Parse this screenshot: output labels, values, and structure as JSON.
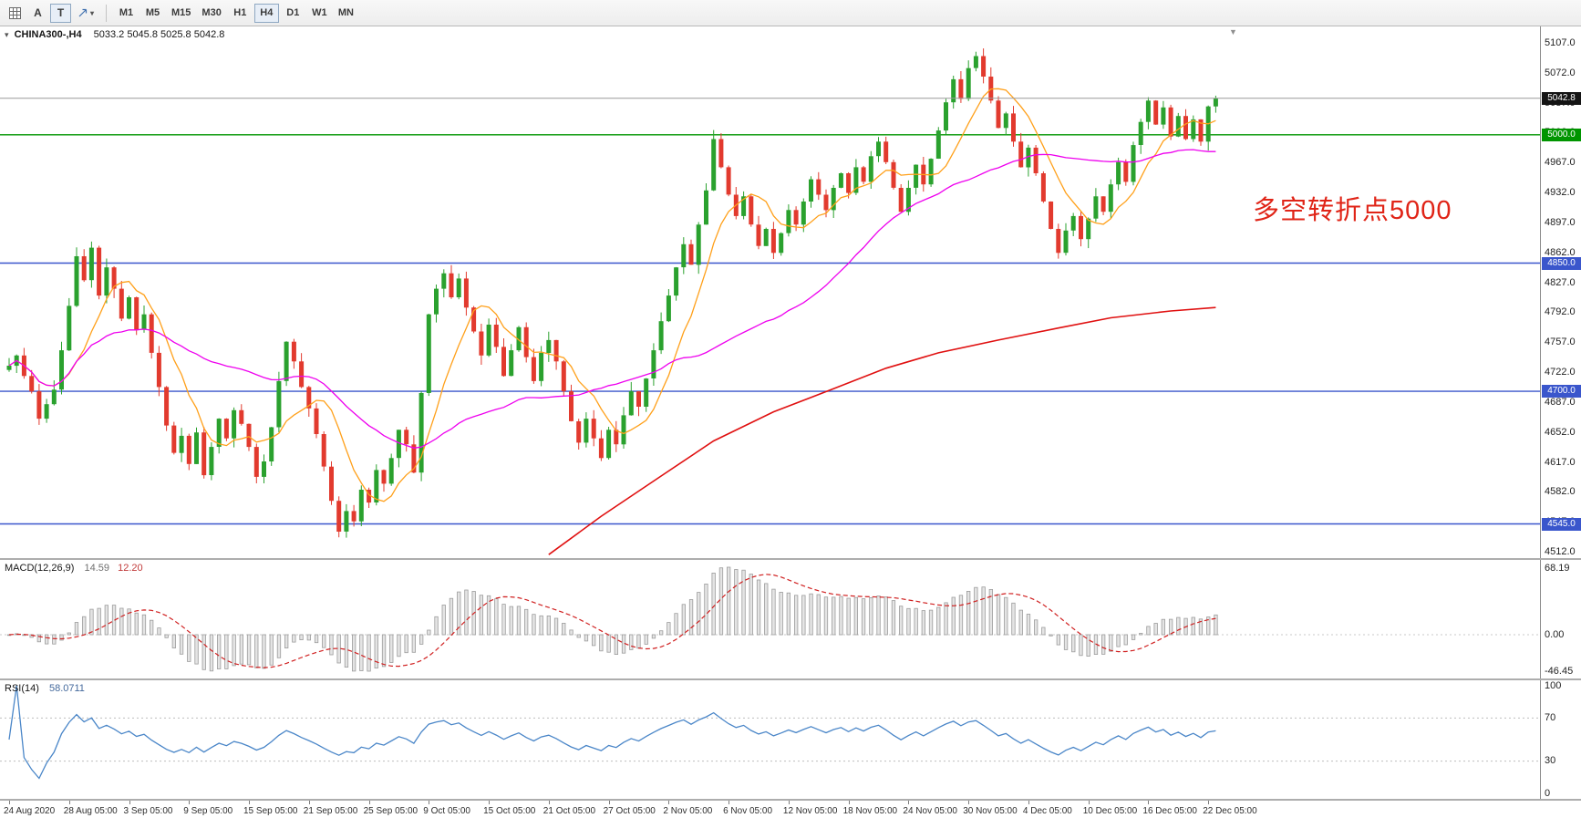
{
  "toolbar": {
    "tools": {
      "a_label": "A",
      "t_label": "T"
    },
    "timeframes": [
      "M1",
      "M5",
      "M15",
      "M30",
      "H1",
      "H4",
      "D1",
      "W1",
      "MN"
    ],
    "active_timeframe": "H4"
  },
  "header": {
    "symbol_period": "CHINA300-,H4",
    "ohlc": "5033.2 5045.8 5025.8 5042.8"
  },
  "chart_data": {
    "type": "candlestick",
    "symbol": "CHINA300-",
    "timeframe": "H4",
    "current_bar": {
      "open": 5033.2,
      "high": 5045.8,
      "low": 5025.8,
      "close": 5042.8
    },
    "first_open": 4725,
    "closes": [
      4730,
      4742,
      4718,
      4700,
      4668,
      4685,
      4702,
      4748,
      4800,
      4858,
      4830,
      4868,
      4812,
      4845,
      4820,
      4785,
      4810,
      4772,
      4790,
      4745,
      4705,
      4660,
      4628,
      4648,
      4615,
      4652,
      4602,
      4635,
      4668,
      4645,
      4678,
      4662,
      4635,
      4600,
      4618,
      4658,
      4712,
      4758,
      4735,
      4705,
      4680,
      4650,
      4612,
      4572,
      4536,
      4560,
      4548,
      4585,
      4570,
      4608,
      4592,
      4622,
      4655,
      4638,
      4605,
      4698,
      4790,
      4820,
      4838,
      4810,
      4832,
      4798,
      4770,
      4742,
      4778,
      4752,
      4718,
      4748,
      4775,
      4740,
      4712,
      4745,
      4760,
      4735,
      4700,
      4665,
      4640,
      4668,
      4645,
      4622,
      4655,
      4638,
      4672,
      4700,
      4682,
      4715,
      4748,
      4782,
      4812,
      4845,
      4872,
      4848,
      4895,
      4935,
      4995,
      4962,
      4930,
      4905,
      4928,
      4895,
      4870,
      4890,
      4862,
      4885,
      4912,
      4895,
      4922,
      4948,
      4930,
      4912,
      4938,
      4955,
      4932,
      4962,
      4945,
      4975,
      4992,
      4968,
      4938,
      4910,
      4938,
      4965,
      4942,
      4972,
      5005,
      5038,
      5065,
      5042,
      5078,
      5092,
      5068,
      5040,
      5008,
      5025,
      4992,
      4962,
      4985,
      4955,
      4922,
      4890,
      4862,
      4888,
      4905,
      4878,
      4902,
      4928,
      4910,
      4942,
      4968,
      4945,
      4988,
      5015,
      5040,
      5012,
      5032,
      4998,
      5022,
      4995,
      5018,
      4992,
      5033.2,
      5042.8
    ],
    "up_color": "#2aa12e",
    "down_color": "#e23a2e",
    "price_axis": {
      "top_price": 5126.7,
      "bottom_price": 4505.0,
      "ticks": [
        "5107.0",
        "5072.0",
        "5037.0",
        "5002.0",
        "4967.0",
        "4932.0",
        "4897.0",
        "4862.0",
        "4827.0",
        "4792.0",
        "4757.0",
        "4722.0",
        "4687.0",
        "4652.0",
        "4617.0",
        "4582.0",
        "4547.0",
        "4512.0"
      ]
    },
    "hlines": [
      {
        "name": "current-price",
        "price": 5042.8,
        "color": "#9a9a9a",
        "label": "5042.8",
        "label_bg": "#141414"
      },
      {
        "name": "level-5000",
        "price": 5000,
        "color": "#009500",
        "label": "5000.0",
        "label_bg": "#009500"
      },
      {
        "name": "level-4850",
        "price": 4850,
        "color": "#3a56cc",
        "label": "4850.0",
        "label_bg": "#3a56cc"
      },
      {
        "name": "level-4700",
        "price": 4700,
        "color": "#3a56cc",
        "label": "4700.0",
        "label_bg": "#3a56cc"
      },
      {
        "name": "level-4545",
        "price": 4545,
        "color": "#3a56cc",
        "label": "4545.0",
        "label_bg": "#3a56cc"
      }
    ],
    "annotation": {
      "text": "多空转折点5000",
      "color": "#e02417"
    },
    "ma": {
      "fast": {
        "period": 8,
        "color": "#ffa01a"
      },
      "medium": {
        "period": 34,
        "color": "#ee00ee"
      },
      "slow_color": "#e01010",
      "slow_anchors": [
        [
          72,
          4509
        ],
        [
          79,
          4554
        ],
        [
          87,
          4601
        ],
        [
          94,
          4642
        ],
        [
          102,
          4676
        ],
        [
          110,
          4703
        ],
        [
          117,
          4727
        ],
        [
          124,
          4745
        ],
        [
          132,
          4760
        ],
        [
          140,
          4774
        ],
        [
          147,
          4786
        ],
        [
          155,
          4794
        ],
        [
          161,
          4798
        ]
      ]
    },
    "macd": {
      "label": "MACD(12,26,9)",
      "value_main": "14.59",
      "value_signal": "12.20",
      "fast": 12,
      "slow": 26,
      "signal": 9,
      "hist_fill": "#e4e4e4",
      "hist_stroke": "#9c9c9c",
      "signal_color": "#d02020",
      "axis_labels": [
        "68.19",
        "0.00",
        "-46.45"
      ]
    },
    "rsi": {
      "label": "RSI(14)",
      "value": "58.0711",
      "period": 14,
      "color": "#4a86c8",
      "levels": [
        70,
        30
      ],
      "axis_labels": [
        "100",
        "70",
        "30",
        "0"
      ]
    },
    "time_labels": [
      {
        "i": 0,
        "label": "24 Aug 2020"
      },
      {
        "i": 8,
        "label": "28 Aug 05:00"
      },
      {
        "i": 16,
        "label": "3 Sep 05:00"
      },
      {
        "i": 24,
        "label": "9 Sep 05:00"
      },
      {
        "i": 32,
        "label": "15 Sep 05:00"
      },
      {
        "i": 40,
        "label": "21 Sep 05:00"
      },
      {
        "i": 48,
        "label": "25 Sep 05:00"
      },
      {
        "i": 56,
        "label": "9 Oct 05:00"
      },
      {
        "i": 64,
        "label": "15 Oct 05:00"
      },
      {
        "i": 72,
        "label": "21 Oct 05:00"
      },
      {
        "i": 80,
        "label": "27 Oct 05:00"
      },
      {
        "i": 88,
        "label": "2 Nov 05:00"
      },
      {
        "i": 96,
        "label": "6 Nov 05:00"
      },
      {
        "i": 104,
        "label": "12 Nov 05:00"
      },
      {
        "i": 112,
        "label": "18 Nov 05:00"
      },
      {
        "i": 120,
        "label": "24 Nov 05:00"
      },
      {
        "i": 128,
        "label": "30 Nov 05:00"
      },
      {
        "i": 136,
        "label": "4 Dec 05:00"
      },
      {
        "i": 144,
        "label": "10 Dec 05:00"
      },
      {
        "i": 152,
        "label": "16 Dec 05:00"
      },
      {
        "i": 160,
        "label": "22 Dec 05:00"
      }
    ]
  }
}
